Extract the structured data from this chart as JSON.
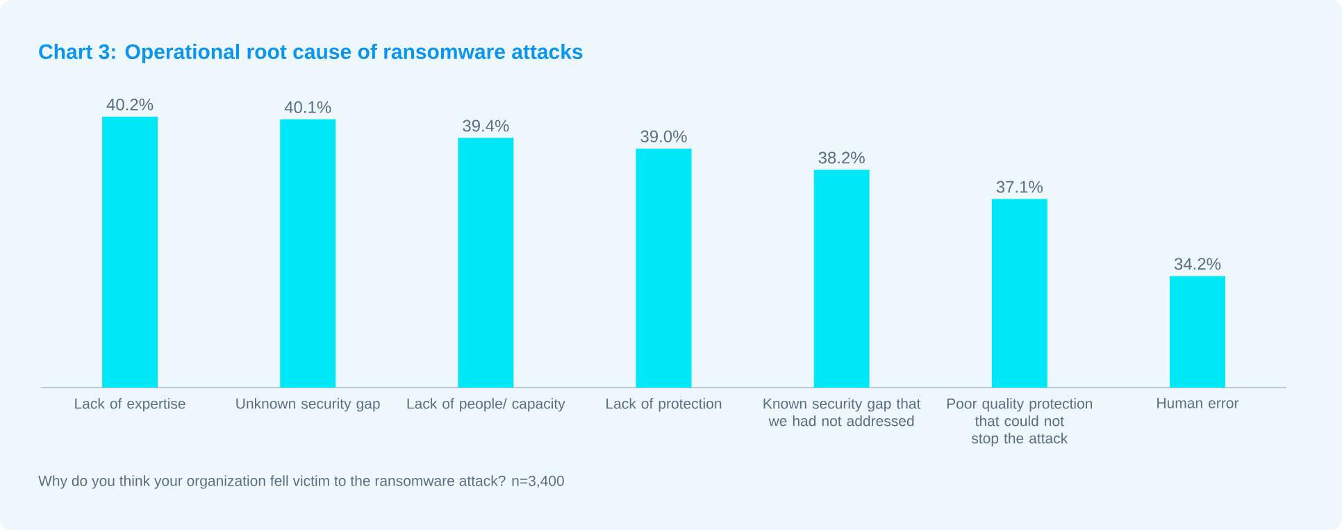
{
  "chart_data": {
    "type": "bar",
    "title": "Chart 3: Operational root cause of ransomware attacks",
    "categories": [
      "Lack of expertise",
      "Unknown security gap",
      "Lack of people/ capacity",
      "Lack of protection",
      "Known security gap that we had not addressed",
      "Poor quality protection that could not stop the attack",
      "Human error"
    ],
    "values": [
      40.2,
      40.1,
      39.4,
      39.0,
      38.2,
      37.1,
      34.2
    ],
    "value_labels": [
      "40.2%",
      "40.1%",
      "39.4%",
      "39.0%",
      "38.2%",
      "37.1%",
      "34.2%"
    ],
    "color": "#00e8f8",
    "ylim": [
      30,
      40.2
    ],
    "tick_labels": "x",
    "annotations": [
      "Why do you think your organization fell victim to the ransomware attack? n=3,400"
    ]
  }
}
